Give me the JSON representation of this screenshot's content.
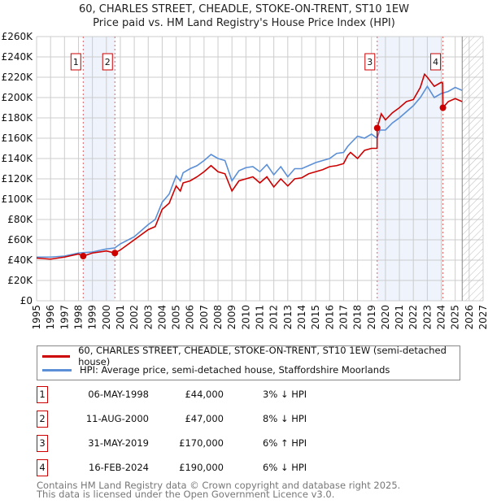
{
  "chart_data": {
    "type": "line",
    "title": "60, CHARLES STREET, CHEADLE, STOKE-ON-TRENT, ST10 1EW",
    "subtitle": "Price paid vs. HM Land Registry's House Price Index (HPI)",
    "xlim": [
      1995,
      2027
    ],
    "ylim": [
      0,
      260000
    ],
    "y_ticks": [
      0,
      20000,
      40000,
      60000,
      80000,
      100000,
      120000,
      140000,
      160000,
      180000,
      200000,
      220000,
      240000,
      260000
    ],
    "y_tick_labels": [
      "£0",
      "£20K",
      "£40K",
      "£60K",
      "£80K",
      "£100K",
      "£120K",
      "£140K",
      "£160K",
      "£180K",
      "£200K",
      "£220K",
      "£240K",
      "£260K"
    ],
    "x_tick_labels": [
      "1995",
      "1996",
      "1997",
      "1998",
      "1999",
      "2000",
      "2001",
      "2002",
      "2003",
      "2004",
      "2005",
      "2006",
      "2007",
      "2008",
      "2009",
      "2010",
      "2011",
      "2012",
      "2013",
      "2014",
      "2015",
      "2016",
      "2017",
      "2018",
      "2019",
      "2020",
      "2021",
      "2022",
      "2023",
      "2024",
      "2025",
      "2026",
      "2027"
    ],
    "grid": true,
    "forecast_hatch_from": 2025.5,
    "series": [
      {
        "name": "60, CHARLES STREET, CHEADLE, STOKE-ON-TRENT, ST10 1EW (semi-detached house)",
        "color": "#cc0000",
        "x": [
          1995,
          1996,
          1997,
          1998,
          1998.34,
          1999,
          2000,
          2000.61,
          2001,
          2002,
          2003,
          2003.5,
          2004,
          2004.5,
          2005,
          2005.3,
          2005.5,
          2006,
          2006.5,
          2007,
          2007.5,
          2008,
          2008.5,
          2009,
          2009.5,
          2010,
          2010.5,
          2011,
          2011.5,
          2012,
          2012.5,
          2013,
          2013.5,
          2014,
          2014.5,
          2015,
          2015.5,
          2016,
          2016.5,
          2017,
          2017.3,
          2017.5,
          2018,
          2018.5,
          2019,
          2019.4,
          2019.41,
          2019.7,
          2020,
          2020.5,
          2021,
          2021.5,
          2022,
          2022.5,
          2022.8,
          2023,
          2023.5,
          2024,
          2024.1,
          2024.12,
          2024.5,
          2025,
          2025.5
        ],
        "y": [
          42000,
          41000,
          43000,
          46000,
          44000,
          47000,
          49000,
          47000,
          50000,
          60000,
          70000,
          73000,
          90000,
          96000,
          113000,
          108000,
          116000,
          118000,
          122000,
          127000,
          133000,
          127000,
          125000,
          108000,
          118000,
          120000,
          122000,
          116000,
          122000,
          112000,
          120000,
          113000,
          120000,
          121000,
          125000,
          127000,
          129000,
          132000,
          133000,
          135000,
          143000,
          146000,
          140000,
          148000,
          150000,
          150000,
          170000,
          184000,
          178000,
          185000,
          190000,
          196000,
          198000,
          210000,
          223000,
          220000,
          211000,
          215000,
          214000,
          190000,
          196000,
          199000,
          196000
        ]
      },
      {
        "name": "HPI: Average price, semi-detached house, Staffordshire Moorlands",
        "color": "#5b8fd6",
        "x": [
          1995,
          1996,
          1997,
          1998,
          1999,
          2000,
          2000.6,
          2001,
          2002,
          2003,
          2003.5,
          2004,
          2004.5,
          2005,
          2005.3,
          2005.5,
          2006,
          2006.5,
          2007,
          2007.5,
          2008,
          2008.5,
          2009,
          2009.5,
          2010,
          2010.5,
          2011,
          2011.5,
          2012,
          2012.5,
          2013,
          2013.5,
          2014,
          2014.5,
          2015,
          2015.5,
          2016,
          2016.5,
          2017,
          2017.3,
          2017.5,
          2018,
          2018.5,
          2019,
          2019.4,
          2019.6,
          2020,
          2020.5,
          2021,
          2021.5,
          2022,
          2022.5,
          2023,
          2023.5,
          2024,
          2024.5,
          2025,
          2025.5
        ],
        "y": [
          43000,
          43000,
          44000,
          47000,
          48000,
          51000,
          52000,
          56000,
          63000,
          75000,
          80000,
          97000,
          105000,
          123000,
          118000,
          126000,
          130000,
          133000,
          138000,
          144000,
          140000,
          138000,
          118000,
          128000,
          131000,
          132000,
          127000,
          134000,
          124000,
          132000,
          122000,
          130000,
          130000,
          133000,
          136000,
          138000,
          140000,
          145000,
          146000,
          152000,
          155000,
          162000,
          160000,
          164000,
          160000,
          168000,
          168000,
          175000,
          180000,
          186000,
          192000,
          200000,
          211000,
          200000,
          204000,
          206000,
          210000,
          207000
        ]
      }
    ],
    "sales": [
      {
        "id": "1",
        "x": 1998.34,
        "price": 44000,
        "date": "06-MAY-1998",
        "price_label": "£44,000",
        "hpi": "3% ↓ HPI"
      },
      {
        "id": "2",
        "x": 2000.61,
        "price": 47000,
        "date": "11-AUG-2000",
        "price_label": "£47,000",
        "hpi": "8% ↓ HPI"
      },
      {
        "id": "3",
        "x": 2019.41,
        "price": 170000,
        "date": "31-MAY-2019",
        "price_label": "£170,000",
        "hpi": "6% ↑ HPI"
      },
      {
        "id": "4",
        "x": 2024.12,
        "price": 190000,
        "date": "16-FEB-2024",
        "price_label": "£190,000",
        "hpi": "6% ↓ HPI"
      }
    ]
  },
  "title": "60, CHARLES STREET, CHEADLE, STOKE-ON-TRENT, ST10 1EW",
  "subtitle": "Price paid vs. HM Land Registry's House Price Index (HPI)",
  "legend": {
    "property": "60, CHARLES STREET, CHEADLE, STOKE-ON-TRENT, ST10 1EW (semi-detached house)",
    "hpi": "HPI: Average price, semi-detached house, Staffordshire Moorlands"
  },
  "footer": {
    "line1": "Contains HM Land Registry data © Crown copyright and database right 2025.",
    "line2": "This data is licensed under the Open Government Licence v3.0."
  }
}
